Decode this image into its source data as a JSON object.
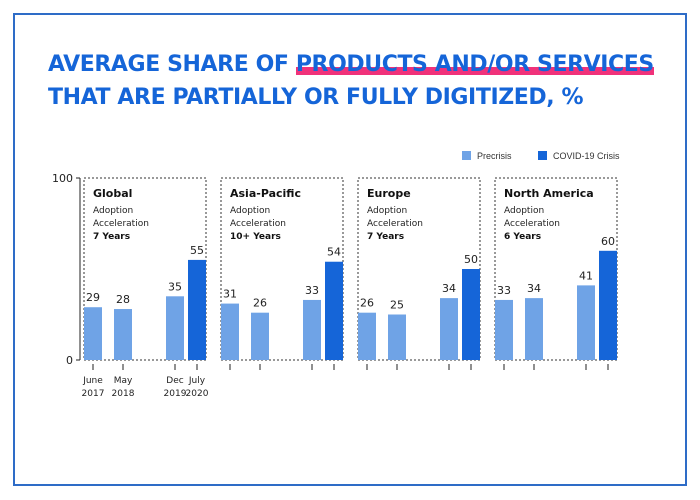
{
  "chart_data": {
    "type": "bar",
    "title_prefix": "AVERAGE SHARE OF ",
    "title_highlight": "PRODUCTS AND/OR SERVICES",
    "title_line2": "THAT ARE PARTIALLY OR FULLY DIGITIZED, %",
    "ylim": [
      0,
      100
    ],
    "y_ticks": [
      "0",
      "100"
    ],
    "categories": [
      [
        "June",
        "2017"
      ],
      [
        "May",
        "2018"
      ],
      [
        "Dec",
        "2019"
      ],
      [
        "July",
        "2020"
      ]
    ],
    "legend": [
      {
        "name": "Precrisis",
        "color": "#6fa3e6"
      },
      {
        "name": "COVID-19 Crisis",
        "color": "#1565d8"
      }
    ],
    "panels": [
      {
        "region": "Global",
        "note1": "Adoption",
        "note2": "Acceleration",
        "years": "7 Years",
        "values": [
          29,
          28,
          35,
          55
        ]
      },
      {
        "region": "Asia-Pacific",
        "note1": "Adoption",
        "note2": "Acceleration",
        "years": "10+ Years",
        "values": [
          31,
          26,
          33,
          54
        ]
      },
      {
        "region": "Europe",
        "note1": "Adoption",
        "note2": "Acceleration",
        "years": "7 Years",
        "values": [
          26,
          25,
          34,
          50
        ]
      },
      {
        "region": "North America",
        "note1": "Adoption",
        "note2": "Acceleration",
        "years": "6 Years",
        "values": [
          33,
          34,
          41,
          60
        ]
      }
    ]
  }
}
